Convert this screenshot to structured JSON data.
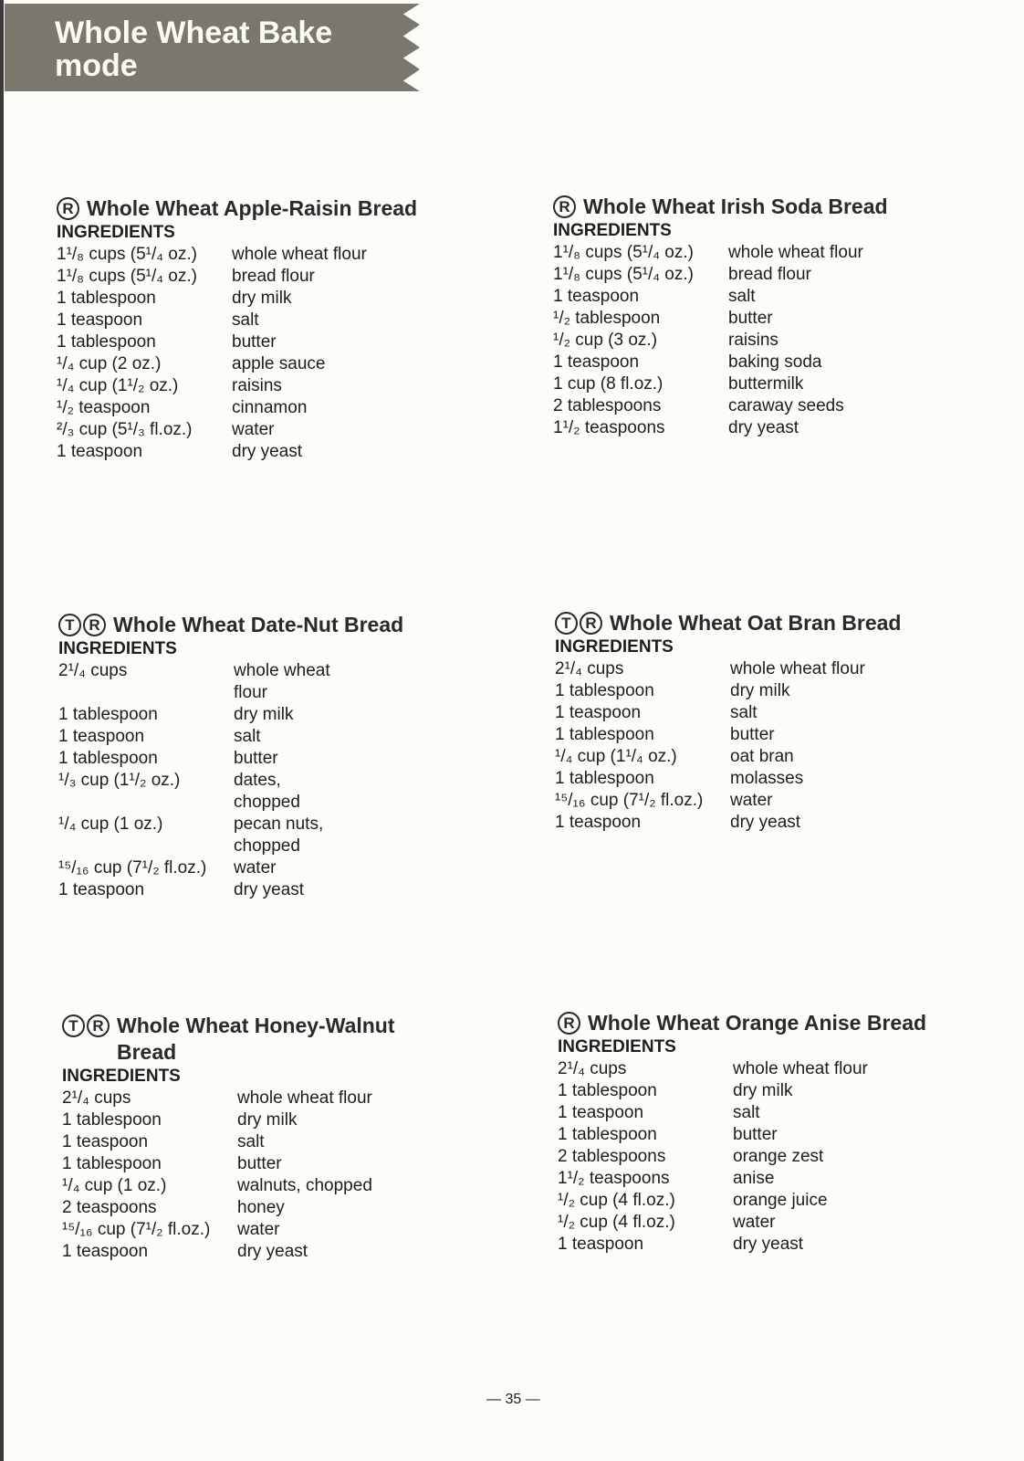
{
  "header": {
    "title": "Whole Wheat Bake mode"
  },
  "ingredients_label": "INGREDIENTS",
  "recipes": [
    {
      "marks": [
        "R"
      ],
      "title": "Whole Wheat Apple-Raisin Bread",
      "ingredients": [
        {
          "qty": "1¹/₈ cups (5¹/₄ oz.)",
          "item": "whole wheat flour"
        },
        {
          "qty": "1¹/₈ cups (5¹/₄ oz.)",
          "item": "bread flour"
        },
        {
          "qty": "1 tablespoon",
          "item": "dry milk"
        },
        {
          "qty": "1 teaspoon",
          "item": "salt"
        },
        {
          "qty": "1 tablespoon",
          "item": "butter"
        },
        {
          "qty": "¹/₄ cup (2 oz.)",
          "item": "apple sauce"
        },
        {
          "qty": "¹/₄ cup (1¹/₂ oz.)",
          "item": "raisins"
        },
        {
          "qty": "¹/₂ teaspoon",
          "item": "cinnamon"
        },
        {
          "qty": "²/₃ cup (5¹/₃ fl.oz.)",
          "item": "water"
        },
        {
          "qty": "1 teaspoon",
          "item": "dry yeast"
        }
      ]
    },
    {
      "marks": [
        "R"
      ],
      "title": "Whole Wheat Irish Soda Bread",
      "ingredients": [
        {
          "qty": "1¹/₈ cups (5¹/₄ oz.)",
          "item": "whole wheat flour"
        },
        {
          "qty": "1¹/₈ cups (5¹/₄ oz.)",
          "item": "bread flour"
        },
        {
          "qty": "1 teaspoon",
          "item": "salt"
        },
        {
          "qty": "¹/₂ tablespoon",
          "item": "butter"
        },
        {
          "qty": "¹/₂ cup (3 oz.)",
          "item": "raisins"
        },
        {
          "qty": "1 teaspoon",
          "item": "baking soda"
        },
        {
          "qty": "1 cup (8 fl.oz.)",
          "item": "buttermilk"
        },
        {
          "qty": "2 tablespoons",
          "item": "caraway seeds"
        },
        {
          "qty": "1¹/₂ teaspoons",
          "item": "dry yeast"
        }
      ]
    },
    {
      "marks": [
        "T",
        "R"
      ],
      "title": "Whole Wheat Date-Nut Bread",
      "ingredients": [
        {
          "qty": "2¹/₄ cups",
          "item": "whole wheat flour"
        },
        {
          "qty": "1 tablespoon",
          "item": "dry milk"
        },
        {
          "qty": "1 teaspoon",
          "item": "salt"
        },
        {
          "qty": "1 tablespoon",
          "item": "butter"
        },
        {
          "qty": "¹/₃ cup (1¹/₂ oz.)",
          "item": "dates, chopped"
        },
        {
          "qty": "¹/₄ cup (1 oz.)",
          "item": "pecan nuts, chopped"
        },
        {
          "qty": "¹⁵/₁₆ cup (7¹/₂ fl.oz.)",
          "item": "water"
        },
        {
          "qty": "1 teaspoon",
          "item": "dry yeast"
        }
      ]
    },
    {
      "marks": [
        "T",
        "R"
      ],
      "title": "Whole Wheat Oat Bran Bread",
      "ingredients": [
        {
          "qty": "2¹/₄ cups",
          "item": "whole wheat flour"
        },
        {
          "qty": "1 tablespoon",
          "item": "dry milk"
        },
        {
          "qty": "1 teaspoon",
          "item": "salt"
        },
        {
          "qty": "1 tablespoon",
          "item": "butter"
        },
        {
          "qty": "¹/₄ cup (1¹/₄ oz.)",
          "item": "oat bran"
        },
        {
          "qty": "1 tablespoon",
          "item": "molasses"
        },
        {
          "qty": "¹⁵/₁₆ cup (7¹/₂ fl.oz.)",
          "item": "water"
        },
        {
          "qty": "1 teaspoon",
          "item": "dry yeast"
        }
      ]
    },
    {
      "marks": [
        "T",
        "R"
      ],
      "title": "Whole Wheat Honey-Walnut Bread",
      "ingredients": [
        {
          "qty": "2¹/₄ cups",
          "item": "whole wheat flour"
        },
        {
          "qty": "1 tablespoon",
          "item": "dry milk"
        },
        {
          "qty": "1 teaspoon",
          "item": "salt"
        },
        {
          "qty": "1 tablespoon",
          "item": "butter"
        },
        {
          "qty": "¹/₄ cup (1 oz.)",
          "item": "walnuts, chopped"
        },
        {
          "qty": "2 teaspoons",
          "item": "honey"
        },
        {
          "qty": "¹⁵/₁₆ cup (7¹/₂ fl.oz.)",
          "item": "water"
        },
        {
          "qty": "1 teaspoon",
          "item": "dry yeast"
        }
      ]
    },
    {
      "marks": [
        "R"
      ],
      "title": "Whole Wheat Orange Anise Bread",
      "ingredients": [
        {
          "qty": "2¹/₄ cups",
          "item": "whole wheat flour"
        },
        {
          "qty": "1 tablespoon",
          "item": "dry milk"
        },
        {
          "qty": "1 teaspoon",
          "item": "salt"
        },
        {
          "qty": "1 tablespoon",
          "item": "butter"
        },
        {
          "qty": "2 tablespoons",
          "item": "orange zest"
        },
        {
          "qty": "1¹/₂ teaspoons",
          "item": "anise"
        },
        {
          "qty": "¹/₂ cup (4 fl.oz.)",
          "item": "orange juice"
        },
        {
          "qty": "¹/₂ cup (4 fl.oz.)",
          "item": "water"
        },
        {
          "qty": "1 teaspoon",
          "item": "dry yeast"
        }
      ]
    }
  ],
  "page_number": "— 35 —"
}
